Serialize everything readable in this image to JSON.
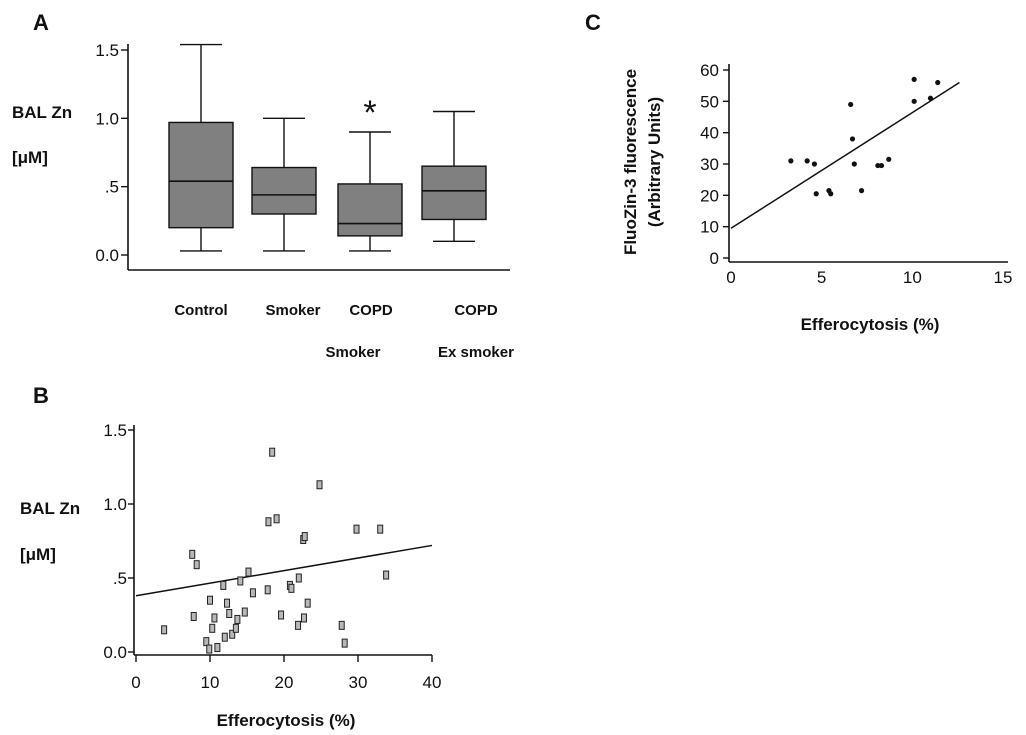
{
  "chart_data": [
    {
      "panel": "A",
      "type": "box",
      "ylabel_line1": "BAL Zn",
      "ylabel_line2": "[μM]",
      "ylim": [
        0,
        1.5
      ],
      "yticks": [
        {
          "value": 0.0,
          "label": "0.0"
        },
        {
          "value": 0.5,
          "label": ".5"
        },
        {
          "value": 1.0,
          "label": "1.0"
        },
        {
          "value": 1.5,
          "label": "1.5"
        }
      ],
      "categories": [
        {
          "line1": "Control",
          "line2": ""
        },
        {
          "line1": "Smoker",
          "line2": ""
        },
        {
          "line1": "COPD",
          "line2": "Smoker"
        },
        {
          "line1": "COPD",
          "line2": "Ex smoker"
        }
      ],
      "boxes": [
        {
          "min": 0.03,
          "q1": 0.2,
          "median": 0.54,
          "q3": 0.97,
          "max": 1.54
        },
        {
          "min": 0.03,
          "q1": 0.3,
          "median": 0.44,
          "q3": 0.64,
          "max": 1.0
        },
        {
          "min": 0.03,
          "q1": 0.14,
          "median": 0.23,
          "q3": 0.52,
          "max": 0.9
        },
        {
          "min": 0.1,
          "q1": 0.26,
          "median": 0.47,
          "q3": 0.65,
          "max": 1.05
        }
      ],
      "annotations": [
        {
          "text": "*",
          "category_index": 2
        }
      ],
      "colors": {
        "box_fill": "#808080",
        "line": "#111111"
      }
    },
    {
      "panel": "B",
      "type": "scatter",
      "ylabel_line1": "BAL Zn",
      "ylabel_line2": "[μM]",
      "xlabel": "Efferocytosis (%)",
      "xlim": [
        0,
        40
      ],
      "ylim": [
        0,
        1.5
      ],
      "xticks": [
        {
          "value": 0,
          "label": "0"
        },
        {
          "value": 10,
          "label": "10"
        },
        {
          "value": 20,
          "label": "20"
        },
        {
          "value": 30,
          "label": "30"
        },
        {
          "value": 40,
          "label": "40"
        }
      ],
      "yticks": [
        {
          "value": 0.0,
          "label": "0.0"
        },
        {
          "value": 0.5,
          "label": ".5"
        },
        {
          "value": 1.0,
          "label": "1.0"
        },
        {
          "value": 1.5,
          "label": "1.5"
        }
      ],
      "points": [
        [
          3.8,
          0.15
        ],
        [
          7.6,
          0.66
        ],
        [
          8.2,
          0.59
        ],
        [
          7.8,
          0.24
        ],
        [
          9.5,
          0.07
        ],
        [
          9.9,
          0.02
        ],
        [
          10.0,
          0.35
        ],
        [
          10.3,
          0.16
        ],
        [
          10.6,
          0.23
        ],
        [
          11.0,
          0.03
        ],
        [
          11.8,
          0.45
        ],
        [
          12.0,
          0.1
        ],
        [
          12.3,
          0.33
        ],
        [
          12.6,
          0.26
        ],
        [
          13.0,
          0.12
        ],
        [
          13.5,
          0.16
        ],
        [
          13.7,
          0.22
        ],
        [
          14.1,
          0.48
        ],
        [
          14.7,
          0.27
        ],
        [
          15.2,
          0.54
        ],
        [
          15.8,
          0.4
        ],
        [
          17.8,
          0.42
        ],
        [
          17.9,
          0.88
        ],
        [
          18.4,
          1.35
        ],
        [
          19.0,
          0.9
        ],
        [
          19.6,
          0.25
        ],
        [
          20.8,
          0.45
        ],
        [
          21.0,
          0.43
        ],
        [
          21.9,
          0.18
        ],
        [
          22.0,
          0.5
        ],
        [
          22.6,
          0.76
        ],
        [
          22.7,
          0.23
        ],
        [
          22.8,
          0.78
        ],
        [
          23.2,
          0.33
        ],
        [
          24.8,
          1.13
        ],
        [
          27.8,
          0.18
        ],
        [
          28.2,
          0.06
        ],
        [
          29.8,
          0.83
        ],
        [
          33.0,
          0.83
        ],
        [
          33.8,
          0.52
        ]
      ],
      "trendline": {
        "x": [
          0,
          40
        ],
        "y": [
          0.38,
          0.72
        ]
      },
      "colors": {
        "marker_fill": "#b8b8b8",
        "marker_stroke": "#222222",
        "line": "#111111"
      }
    },
    {
      "panel": "C",
      "type": "scatter",
      "ylabel_line1": "FluoZin-3 fluorescence",
      "ylabel_line2": "(Arbitrary Units)",
      "xlabel": "Efferocytosis (%)",
      "xlim": [
        0,
        15
      ],
      "ylim": [
        0,
        60
      ],
      "xticks": [
        {
          "value": 0,
          "label": "0"
        },
        {
          "value": 5,
          "label": "5"
        },
        {
          "value": 10,
          "label": "10"
        },
        {
          "value": 15,
          "label": "15"
        }
      ],
      "yticks": [
        {
          "value": 0,
          "label": "0"
        },
        {
          "value": 10,
          "label": "10"
        },
        {
          "value": 20,
          "label": "20"
        },
        {
          "value": 30,
          "label": "30"
        },
        {
          "value": 40,
          "label": "40"
        },
        {
          "value": 50,
          "label": "50"
        },
        {
          "value": 60,
          "label": "60"
        }
      ],
      "points": [
        [
          3.3,
          31
        ],
        [
          4.2,
          31
        ],
        [
          4.6,
          30
        ],
        [
          4.7,
          20.5
        ],
        [
          5.4,
          21.5
        ],
        [
          5.5,
          20.5
        ],
        [
          6.6,
          49
        ],
        [
          6.7,
          38
        ],
        [
          6.8,
          30
        ],
        [
          7.2,
          21.5
        ],
        [
          8.1,
          29.5
        ],
        [
          8.3,
          29.5
        ],
        [
          8.7,
          31.5
        ],
        [
          10.1,
          57
        ],
        [
          10.1,
          50
        ],
        [
          11.0,
          51
        ],
        [
          11.4,
          56
        ]
      ],
      "trendline": {
        "x": [
          0,
          12.6
        ],
        "y": [
          9.5,
          56
        ]
      },
      "colors": {
        "marker_fill": "#111111",
        "line": "#111111"
      }
    }
  ],
  "panels": {
    "a": "A",
    "b": "B",
    "c": "C"
  },
  "annotations": {
    "star": "*"
  }
}
